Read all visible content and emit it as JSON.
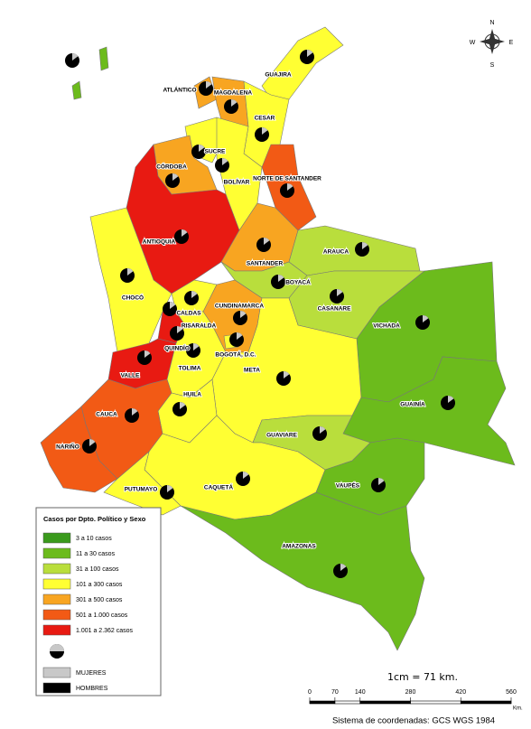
{
  "map": {
    "departments": [
      "GUAJIRA",
      "ATLÁNTICO",
      "MAGDALENA",
      "CESAR",
      "SUCRE",
      "CÓRDOBA",
      "BOLÍVAR",
      "NORTE DE SANTANDER",
      "ANTIOQUIA",
      "ARAUCA",
      "SANTANDER",
      "BOYACÁ",
      "CHOCÓ",
      "CALDAS",
      "CASANARE",
      "CUNDINAMARCA",
      "RISARALDA",
      "VICHADA",
      "QUINDÍO",
      "BOGOTÁ, D.C.",
      "VALLE",
      "TOLIMA",
      "META",
      "HUILA",
      "GUAINÍA",
      "CAUCA",
      "GUAVIARE",
      "NARIÑO",
      "CAQUETÁ",
      "VAUPÉS",
      "PUTUMAYO",
      "AMAZONAS"
    ],
    "compass": [
      "N",
      "E",
      "S",
      "W"
    ]
  },
  "legend": {
    "title": "Casos por Dpto. Político y Sexo",
    "classes": [
      {
        "label": "3 a 10 casos",
        "color": "#3a9a1c"
      },
      {
        "label": "11 a 30 casos",
        "color": "#6cbb1c"
      },
      {
        "label": "31 a 100 casos",
        "color": "#b9de3c"
      },
      {
        "label": "101 a 300 casos",
        "color": "#ffff33"
      },
      {
        "label": "301 a 500 casos",
        "color": "#f8a521"
      },
      {
        "label": "501 a 1.000 casos",
        "color": "#f25a15"
      },
      {
        "label": "1.001 a 2.362 casos",
        "color": "#e81a12"
      }
    ],
    "sex": [
      {
        "label": "MUJERES",
        "color": "#c8c8c8"
      },
      {
        "label": "HOMBRES",
        "color": "#000000"
      }
    ]
  },
  "scale": {
    "label": "1cm = 71 km.",
    "ticks": [
      0,
      70,
      140,
      280,
      420,
      560
    ],
    "unit": "Km."
  },
  "coordinate_system": "Sistema de coordenadas: GCS WGS 1984"
}
